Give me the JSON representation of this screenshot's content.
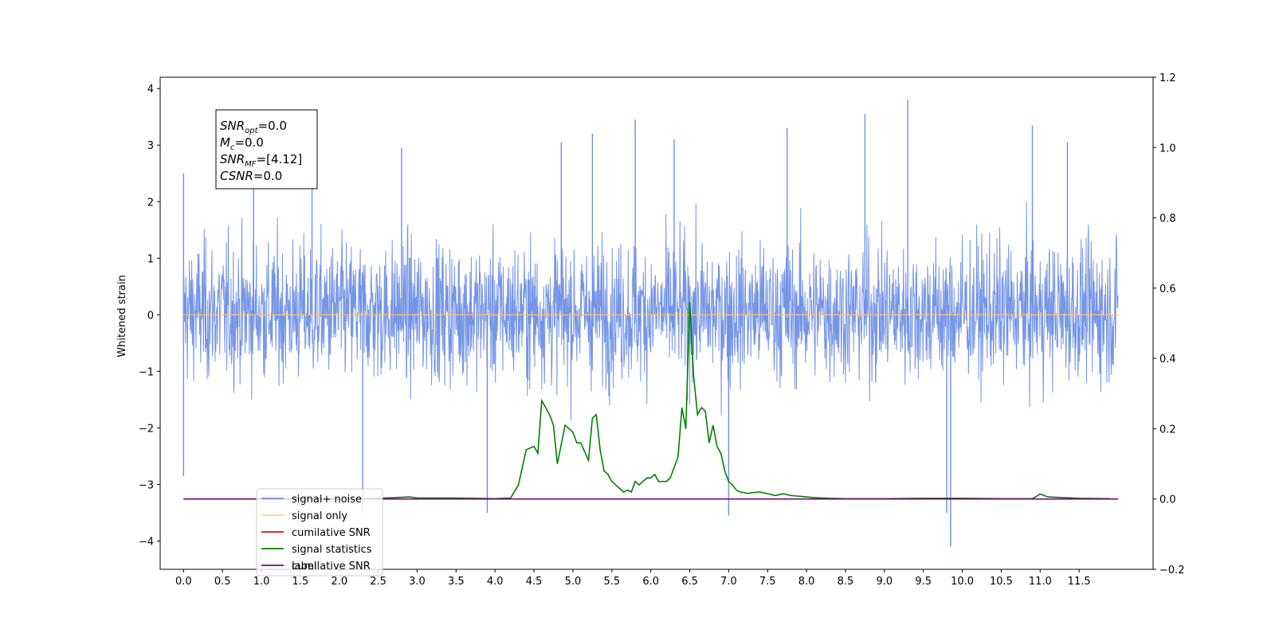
{
  "chart_data": {
    "type": "line",
    "ylabel": "Whitened strain",
    "x_ticks": [
      "0.0",
      "0.5",
      "1.0",
      "1.5",
      "2.0",
      "2.5",
      "3.0",
      "3.5",
      "4.0",
      "4.5",
      "5.0",
      "5.5",
      "6.0",
      "6.5",
      "7.0",
      "7.5",
      "8.0",
      "8.5",
      "9.0",
      "9.5",
      "10.0",
      "10.5",
      "11.0",
      "11.5"
    ],
    "y_left_ticks": [
      "4",
      "3",
      "2",
      "1",
      "0",
      "−1",
      "−2",
      "−3",
      "−4"
    ],
    "y_right_ticks": [
      "1.2",
      "1.0",
      "0.8",
      "0.6",
      "0.4",
      "0.2",
      "0.0",
      "−0.2"
    ],
    "xlim": [
      -0.3,
      12.45
    ],
    "ylim_left": [
      -4.5,
      4.2
    ],
    "ylim_right": [
      -0.2,
      1.2
    ],
    "info_box": [
      {
        "base": "SNR",
        "sub": "opt",
        "value": "=0.0"
      },
      {
        "base": "M",
        "sub": "c",
        "value": "=0.0"
      },
      {
        "base": "SNR",
        "sub": "MF",
        "value": "=[4.12]"
      },
      {
        "base": "CSNR",
        "sub": "",
        "value": "=0.0"
      }
    ],
    "legend": {
      "placement": "lower-left",
      "entries": [
        {
          "label": "signal+ noise",
          "color": "#6f8fe6"
        },
        {
          "label": "signal only",
          "color": "#ffbf66"
        },
        {
          "label": "cumilative SNR",
          "color": "#ff0000"
        },
        {
          "label": "signal statistics",
          "color": "#008000"
        },
        {
          "label": "label",
          "color": "#800080"
        }
      ],
      "ghost_text": "cumilative SNR"
    },
    "series": [
      {
        "name": "signal+ noise",
        "axis": "left",
        "color": "#6f8fe6",
        "x_range": [
          0.0,
          12.0
        ],
        "envelope": {
          "spikes": [
            {
              "x": 0.0,
              "y": 2.5
            },
            {
              "x": 0.0,
              "y": -2.85
            },
            {
              "x": 0.9,
              "y": 2.4
            },
            {
              "x": 1.65,
              "y": 3.15
            },
            {
              "x": 2.3,
              "y": -3.5
            },
            {
              "x": 2.8,
              "y": 2.95
            },
            {
              "x": 3.9,
              "y": -3.5
            },
            {
              "x": 4.85,
              "y": 3.05
            },
            {
              "x": 5.25,
              "y": 3.2
            },
            {
              "x": 5.8,
              "y": 3.45
            },
            {
              "x": 6.3,
              "y": 3.1
            },
            {
              "x": 7.0,
              "y": -3.55
            },
            {
              "x": 7.75,
              "y": 3.3
            },
            {
              "x": 8.75,
              "y": 3.55
            },
            {
              "x": 9.3,
              "y": 3.8
            },
            {
              "x": 9.85,
              "y": -4.1
            },
            {
              "x": 9.8,
              "y": -3.5
            },
            {
              "x": 10.9,
              "y": 3.35
            },
            {
              "x": 11.35,
              "y": 3.05
            }
          ]
        }
      },
      {
        "name": "signal only",
        "axis": "left",
        "color": "#ffbf66",
        "x": [
          0.0,
          12.0
        ],
        "y": [
          0.0,
          0.0
        ]
      },
      {
        "name": "signal statistics",
        "axis": "right",
        "color": "#008000",
        "x": [
          0.0,
          0.5,
          1.0,
          1.5,
          2.0,
          2.5,
          2.9,
          3.0,
          3.5,
          4.0,
          4.2,
          4.3,
          4.4,
          4.5,
          4.55,
          4.6,
          4.7,
          4.75,
          4.8,
          4.9,
          5.0,
          5.05,
          5.1,
          5.2,
          5.25,
          5.3,
          5.35,
          5.4,
          5.45,
          5.5,
          5.55,
          5.6,
          5.65,
          5.7,
          5.75,
          5.8,
          5.85,
          5.9,
          5.95,
          6.0,
          6.05,
          6.1,
          6.15,
          6.2,
          6.25,
          6.3,
          6.35,
          6.4,
          6.45,
          6.5,
          6.55,
          6.6,
          6.65,
          6.7,
          6.75,
          6.8,
          6.85,
          6.9,
          6.95,
          7.0,
          7.05,
          7.1,
          7.15,
          7.2,
          7.25,
          7.3,
          7.4,
          7.5,
          7.6,
          7.7,
          7.8,
          7.9,
          8.0,
          8.1,
          8.2,
          8.3,
          8.5,
          9.0,
          9.5,
          10.0,
          10.5,
          10.9,
          11.0,
          11.1,
          11.5,
          11.9
        ],
        "y": [
          0.0,
          0.0,
          0.0,
          0.002,
          0.0,
          0.002,
          0.006,
          0.003,
          0.003,
          0.001,
          0.003,
          0.04,
          0.14,
          0.15,
          0.13,
          0.28,
          0.24,
          0.21,
          0.1,
          0.21,
          0.19,
          0.16,
          0.16,
          0.11,
          0.23,
          0.24,
          0.14,
          0.08,
          0.07,
          0.05,
          0.04,
          0.03,
          0.02,
          0.025,
          0.02,
          0.05,
          0.04,
          0.05,
          0.06,
          0.06,
          0.07,
          0.05,
          0.05,
          0.05,
          0.06,
          0.09,
          0.12,
          0.26,
          0.2,
          0.56,
          0.35,
          0.24,
          0.26,
          0.25,
          0.16,
          0.21,
          0.15,
          0.13,
          0.08,
          0.05,
          0.04,
          0.025,
          0.02,
          0.018,
          0.016,
          0.018,
          0.02,
          0.015,
          0.01,
          0.015,
          0.01,
          0.008,
          0.006,
          0.004,
          0.003,
          0.002,
          0.001,
          0.001,
          0.002,
          0.002,
          0.001,
          0.001,
          0.014,
          0.006,
          0.002,
          0.001
        ]
      },
      {
        "name": "label",
        "axis": "right",
        "color": "#800080",
        "x": [
          0.0,
          12.0
        ],
        "y": [
          0.0,
          0.0
        ]
      }
    ]
  }
}
